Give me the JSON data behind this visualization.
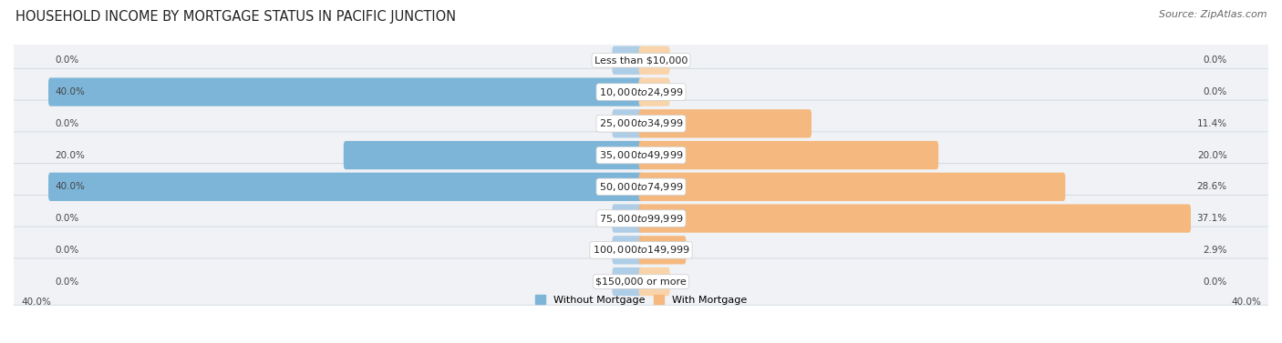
{
  "title": "HOUSEHOLD INCOME BY MORTGAGE STATUS IN PACIFIC JUNCTION",
  "source": "Source: ZipAtlas.com",
  "categories": [
    "Less than $10,000",
    "$10,000 to $24,999",
    "$25,000 to $34,999",
    "$35,000 to $49,999",
    "$50,000 to $74,999",
    "$75,000 to $99,999",
    "$100,000 to $149,999",
    "$150,000 or more"
  ],
  "without_mortgage": [
    0.0,
    40.0,
    0.0,
    20.0,
    40.0,
    0.0,
    0.0,
    0.0
  ],
  "with_mortgage": [
    0.0,
    0.0,
    11.4,
    20.0,
    28.6,
    37.1,
    2.9,
    0.0
  ],
  "color_without": "#7db5d8",
  "color_without_light": "#aecde6",
  "color_with": "#f5b97f",
  "color_with_light": "#f9d4aa",
  "xlim": 40.0,
  "legend_labels": [
    "Without Mortgage",
    "With Mortgage"
  ],
  "title_fontsize": 10.5,
  "source_fontsize": 8,
  "cat_label_fontsize": 8,
  "bar_label_fontsize": 7.5,
  "axis_label_fontsize": 7.5,
  "row_bg_color": "#f0f2f5",
  "row_border_color": "#d0d8e0"
}
